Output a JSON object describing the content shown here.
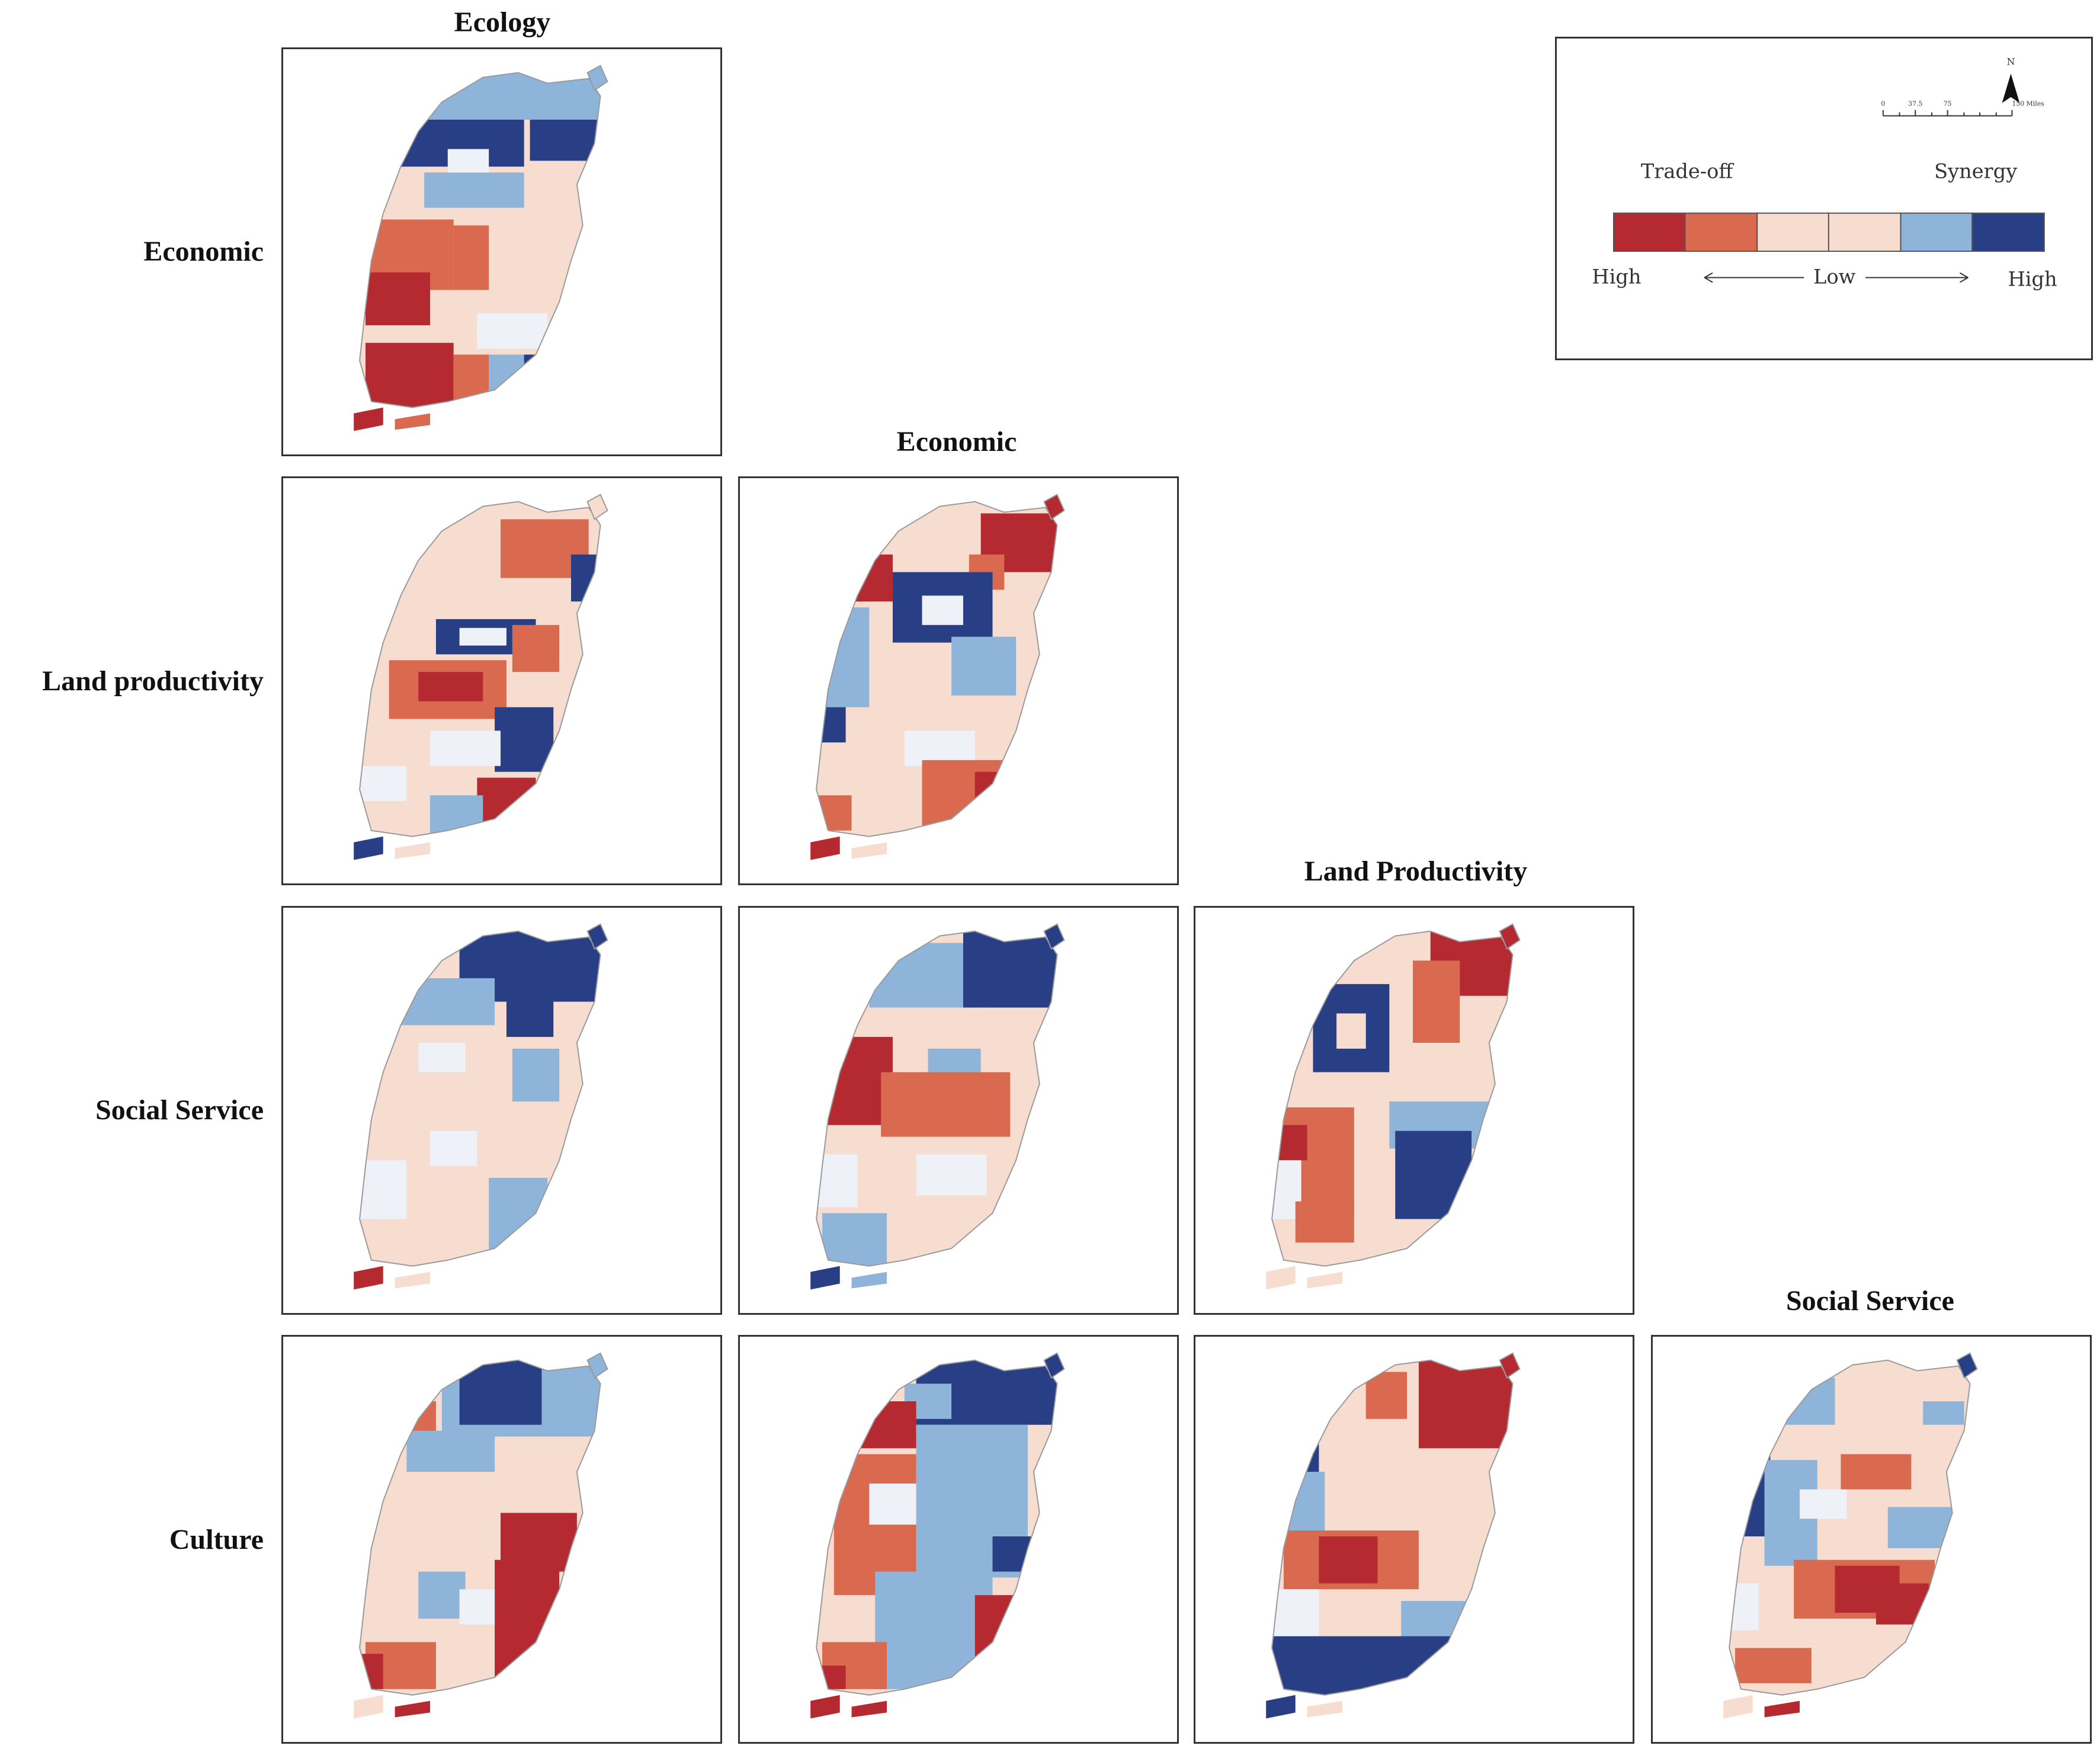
{
  "figure": {
    "column_headers": [
      "Ecology",
      "Economic",
      "Land Productivity",
      "Social Service"
    ],
    "row_headers": [
      "Economic",
      "Land productivity",
      "Social Service",
      "Culture"
    ]
  },
  "legend": {
    "north_label": "N",
    "scale_ticks": [
      "0",
      "37.5",
      "75",
      "150 Miles"
    ],
    "trade_off_label": "Trade-off",
    "synergy_label": "Synergy",
    "high_left": "High",
    "low_label": "Low",
    "high_right": "High",
    "classes": [
      {
        "name": "high trade-off",
        "color": "#b52a30"
      },
      {
        "name": "moderate trade-off",
        "color": "#d9694f"
      },
      {
        "name": "low trade-off",
        "color": "#f7ddcf"
      },
      {
        "name": "low synergy",
        "color": "#f7ddcf"
      },
      {
        "name": "moderate synergy",
        "color": "#8fb4d9"
      },
      {
        "name": "high synergy",
        "color": "#283f86"
      }
    ]
  },
  "colors": {
    "high_tradeoff": "#b52a30",
    "mod_tradeoff": "#d9694f",
    "low": "#f7ddcf",
    "neutral": "#eef1f8",
    "mod_synergy": "#8fb4d9",
    "high_synergy": "#283f86"
  }
}
